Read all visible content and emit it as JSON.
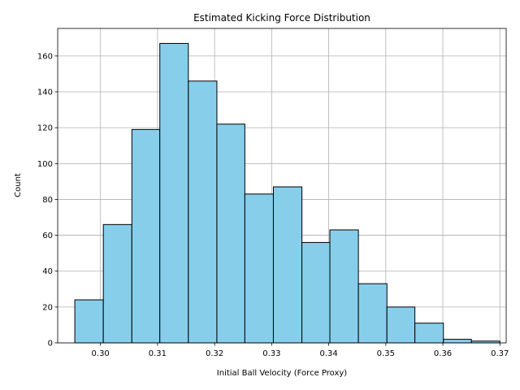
{
  "chart_data": {
    "type": "bar",
    "subtype": "histogram",
    "title": "Estimated Kicking Force Distribution",
    "xlabel": "Initial Ball Velocity (Force Proxy)",
    "ylabel": "Count",
    "bins": [
      {
        "start": 0.2955,
        "end": 0.3005,
        "count": 24
      },
      {
        "start": 0.3005,
        "end": 0.3055,
        "count": 66
      },
      {
        "start": 0.3055,
        "end": 0.3104,
        "count": 119
      },
      {
        "start": 0.3104,
        "end": 0.3154,
        "count": 167
      },
      {
        "start": 0.3154,
        "end": 0.3204,
        "count": 146
      },
      {
        "start": 0.3204,
        "end": 0.3253,
        "count": 122
      },
      {
        "start": 0.3253,
        "end": 0.3303,
        "count": 83
      },
      {
        "start": 0.3303,
        "end": 0.3353,
        "count": 87
      },
      {
        "start": 0.3353,
        "end": 0.3402,
        "count": 56
      },
      {
        "start": 0.3402,
        "end": 0.3452,
        "count": 63
      },
      {
        "start": 0.3452,
        "end": 0.3502,
        "count": 33
      },
      {
        "start": 0.3502,
        "end": 0.3551,
        "count": 20
      },
      {
        "start": 0.3551,
        "end": 0.3601,
        "count": 11
      },
      {
        "start": 0.3601,
        "end": 0.365,
        "count": 2
      },
      {
        "start": 0.365,
        "end": 0.37,
        "count": 1
      }
    ],
    "xlim": [
      0.2925,
      0.3711
    ],
    "ylim": [
      0,
      175.35
    ],
    "xticks": [
      0.3,
      0.31,
      0.32,
      0.33,
      0.34,
      0.35,
      0.36,
      0.37
    ],
    "xtick_labels": [
      "0.30",
      "0.31",
      "0.32",
      "0.33",
      "0.34",
      "0.35",
      "0.36",
      "0.37"
    ],
    "yticks": [
      0,
      20,
      40,
      60,
      80,
      100,
      120,
      140,
      160
    ],
    "ytick_labels": [
      "0",
      "20",
      "40",
      "60",
      "80",
      "100",
      "120",
      "140",
      "160"
    ],
    "grid": true,
    "bar_color": "#87CEEB",
    "edge_color": "#000000",
    "grid_color": "#b0b0b0"
  }
}
